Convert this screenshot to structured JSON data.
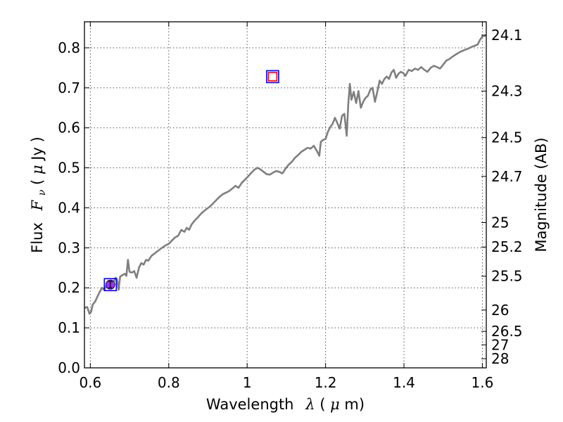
{
  "chart_data": {
    "type": "line",
    "xlabel_text": "Wavelength",
    "xlabel_symbol": "λ",
    "xlabel_unit_open": " (",
    "xlabel_unit_mu": "μ",
    "xlabel_unit_close": "m)",
    "ylabel_text": "Flux",
    "ylabel_symbol": "F",
    "ylabel_sub": "ν",
    "ylabel_unit_open": " ( ",
    "ylabel_unit_mu": "μ",
    "ylabel_unit_close": "Jy )",
    "y2label": "Magnitude (AB)",
    "xlim": [
      0.585,
      1.61
    ],
    "ylim": [
      0.0,
      0.865
    ],
    "grid": true,
    "xticks": [
      0.6,
      0.8,
      1.0,
      1.2,
      1.4,
      1.6
    ],
    "xtick_labels": [
      "0.6",
      "0.8",
      "1",
      "1.2",
      "1.4",
      "1.6"
    ],
    "yticks": [
      0.0,
      0.1,
      0.2,
      0.3,
      0.4,
      0.5,
      0.6,
      0.7,
      0.8
    ],
    "ytick_labels": [
      "0.0",
      "0.1",
      "0.2",
      "0.3",
      "0.4",
      "0.5",
      "0.6",
      "0.7",
      "0.8"
    ],
    "y2ticks": [
      24.1,
      24.3,
      24.5,
      24.7,
      25,
      25.2,
      25.5,
      26,
      26.5,
      27,
      28
    ],
    "y2tick_labels": [
      "24.1",
      "24.3",
      "24.5",
      "24.7",
      "25",
      "25.2",
      "25.5",
      "26",
      "26.5",
      "27",
      "28"
    ],
    "series": [
      {
        "values": [
          [
            0.585,
            0.15
          ],
          [
            0.592,
            0.152
          ],
          [
            0.598,
            0.135
          ],
          [
            0.602,
            0.14
          ],
          [
            0.606,
            0.158
          ],
          [
            0.612,
            0.165
          ],
          [
            0.618,
            0.178
          ],
          [
            0.624,
            0.19
          ],
          [
            0.63,
            0.2
          ],
          [
            0.636,
            0.195
          ],
          [
            0.642,
            0.208
          ],
          [
            0.648,
            0.212
          ],
          [
            0.654,
            0.218
          ],
          [
            0.66,
            0.215
          ],
          [
            0.664,
            0.225
          ],
          [
            0.668,
            0.222
          ],
          [
            0.672,
            0.195
          ],
          [
            0.676,
            0.228
          ],
          [
            0.682,
            0.232
          ],
          [
            0.688,
            0.235
          ],
          [
            0.692,
            0.23
          ],
          [
            0.696,
            0.27
          ],
          [
            0.7,
            0.24
          ],
          [
            0.706,
            0.238
          ],
          [
            0.712,
            0.242
          ],
          [
            0.718,
            0.225
          ],
          [
            0.724,
            0.25
          ],
          [
            0.73,
            0.262
          ],
          [
            0.736,
            0.258
          ],
          [
            0.742,
            0.27
          ],
          [
            0.748,
            0.268
          ],
          [
            0.756,
            0.28
          ],
          [
            0.764,
            0.286
          ],
          [
            0.772,
            0.292
          ],
          [
            0.78,
            0.298
          ],
          [
            0.79,
            0.305
          ],
          [
            0.8,
            0.31
          ],
          [
            0.808,
            0.318
          ],
          [
            0.816,
            0.326
          ],
          [
            0.824,
            0.33
          ],
          [
            0.832,
            0.345
          ],
          [
            0.84,
            0.34
          ],
          [
            0.846,
            0.35
          ],
          [
            0.852,
            0.345
          ],
          [
            0.858,
            0.358
          ],
          [
            0.866,
            0.368
          ],
          [
            0.874,
            0.376
          ],
          [
            0.882,
            0.385
          ],
          [
            0.89,
            0.392
          ],
          [
            0.898,
            0.398
          ],
          [
            0.906,
            0.404
          ],
          [
            0.914,
            0.412
          ],
          [
            0.922,
            0.42
          ],
          [
            0.93,
            0.428
          ],
          [
            0.938,
            0.434
          ],
          [
            0.946,
            0.438
          ],
          [
            0.954,
            0.442
          ],
          [
            0.962,
            0.448
          ],
          [
            0.97,
            0.455
          ],
          [
            0.978,
            0.45
          ],
          [
            0.986,
            0.462
          ],
          [
            0.994,
            0.47
          ],
          [
            1.002,
            0.478
          ],
          [
            1.01,
            0.487
          ],
          [
            1.018,
            0.495
          ],
          [
            1.026,
            0.5
          ],
          [
            1.034,
            0.496
          ],
          [
            1.042,
            0.49
          ],
          [
            1.05,
            0.484
          ],
          [
            1.058,
            0.483
          ],
          [
            1.066,
            0.488
          ],
          [
            1.074,
            0.492
          ],
          [
            1.082,
            0.49
          ],
          [
            1.09,
            0.486
          ],
          [
            1.098,
            0.498
          ],
          [
            1.106,
            0.508
          ],
          [
            1.114,
            0.515
          ],
          [
            1.122,
            0.525
          ],
          [
            1.13,
            0.532
          ],
          [
            1.138,
            0.54
          ],
          [
            1.146,
            0.545
          ],
          [
            1.154,
            0.55
          ],
          [
            1.162,
            0.548
          ],
          [
            1.17,
            0.555
          ],
          [
            1.178,
            0.542
          ],
          [
            1.184,
            0.53
          ],
          [
            1.188,
            0.565
          ],
          [
            1.194,
            0.57
          ],
          [
            1.2,
            0.572
          ],
          [
            1.206,
            0.59
          ],
          [
            1.212,
            0.602
          ],
          [
            1.218,
            0.61
          ],
          [
            1.224,
            0.625
          ],
          [
            1.23,
            0.612
          ],
          [
            1.236,
            0.598
          ],
          [
            1.242,
            0.63
          ],
          [
            1.248,
            0.635
          ],
          [
            1.254,
            0.58
          ],
          [
            1.258,
            0.66
          ],
          [
            1.262,
            0.71
          ],
          [
            1.266,
            0.67
          ],
          [
            1.272,
            0.69
          ],
          [
            1.278,
            0.662
          ],
          [
            1.284,
            0.692
          ],
          [
            1.29,
            0.65
          ],
          [
            1.296,
            0.665
          ],
          [
            1.302,
            0.675
          ],
          [
            1.308,
            0.68
          ],
          [
            1.314,
            0.695
          ],
          [
            1.32,
            0.7
          ],
          [
            1.326,
            0.665
          ],
          [
            1.332,
            0.69
          ],
          [
            1.338,
            0.718
          ],
          [
            1.344,
            0.71
          ],
          [
            1.35,
            0.722
          ],
          [
            1.356,
            0.728
          ],
          [
            1.362,
            0.722
          ],
          [
            1.368,
            0.738
          ],
          [
            1.374,
            0.745
          ],
          [
            1.38,
            0.725
          ],
          [
            1.386,
            0.735
          ],
          [
            1.392,
            0.74
          ],
          [
            1.398,
            0.737
          ],
          [
            1.404,
            0.73
          ],
          [
            1.412,
            0.745
          ],
          [
            1.42,
            0.742
          ],
          [
            1.428,
            0.748
          ],
          [
            1.436,
            0.745
          ],
          [
            1.444,
            0.752
          ],
          [
            1.452,
            0.745
          ],
          [
            1.46,
            0.74
          ],
          [
            1.468,
            0.75
          ],
          [
            1.476,
            0.755
          ],
          [
            1.484,
            0.752
          ],
          [
            1.492,
            0.748
          ],
          [
            1.5,
            0.758
          ],
          [
            1.508,
            0.768
          ],
          [
            1.516,
            0.772
          ],
          [
            1.524,
            0.778
          ],
          [
            1.532,
            0.783
          ],
          [
            1.54,
            0.788
          ],
          [
            1.548,
            0.792
          ],
          [
            1.556,
            0.795
          ],
          [
            1.564,
            0.798
          ],
          [
            1.572,
            0.802
          ],
          [
            1.58,
            0.805
          ],
          [
            1.588,
            0.808
          ],
          [
            1.594,
            0.82
          ],
          [
            1.6,
            0.828
          ],
          [
            1.606,
            0.83
          ],
          [
            1.61,
            0.831
          ]
        ]
      }
    ],
    "photometry": [
      {
        "marker": "circle",
        "x": 0.651,
        "y": 0.208,
        "yerr": 0.008,
        "color": "#9b30ff"
      },
      {
        "marker": "open-square",
        "x": 0.651,
        "y": 0.208,
        "color": "#0000ff"
      },
      {
        "marker": "open-square",
        "x": 1.065,
        "y": 0.728,
        "color": "#ff0000"
      },
      {
        "marker": "open-square",
        "x": 1.065,
        "y": 0.728,
        "color": "#0000ff"
      }
    ],
    "colors": {
      "spectrum": "#7f7f7f",
      "grid": "#555555"
    }
  }
}
